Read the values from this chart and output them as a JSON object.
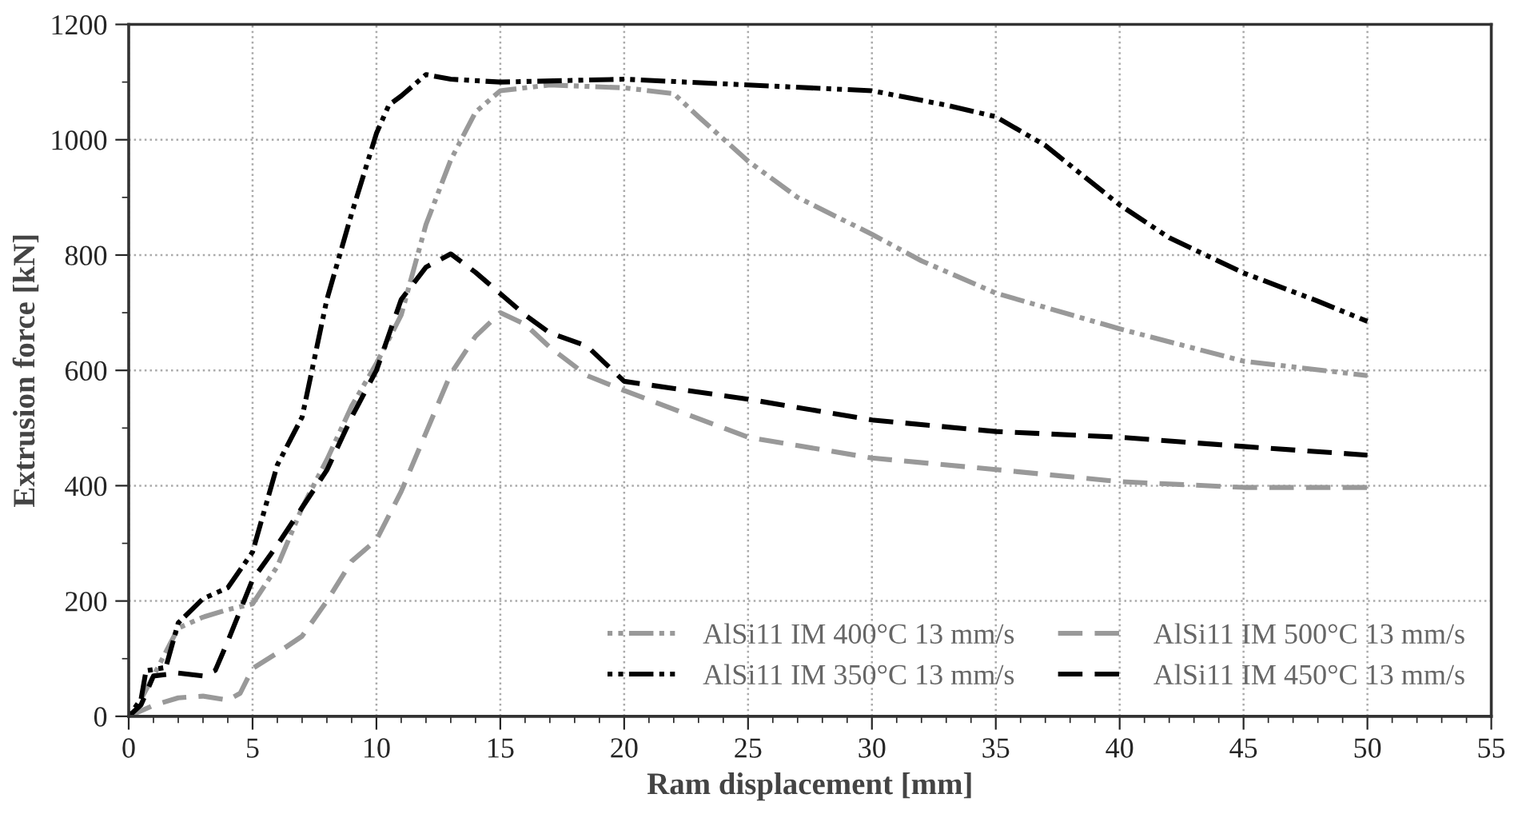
{
  "chart_data": {
    "type": "line",
    "xlabel": "Ram displacement [mm]",
    "ylabel": "Extrusion force [kN]",
    "xlim": [
      0,
      55
    ],
    "xticks": [
      0,
      5,
      10,
      15,
      20,
      25,
      30,
      35,
      40,
      45,
      50,
      55
    ],
    "ylim": [
      0,
      1200
    ],
    "yticks": [
      0,
      200,
      400,
      600,
      800,
      1000,
      1200
    ],
    "grid": true,
    "legend": "bottom right",
    "series": [
      {
        "name": "AlSi11 IM 400°C 13 mm/s",
        "color": "#999999",
        "line_style": "dotted",
        "x": [
          0,
          0.5,
          1,
          2,
          3,
          4,
          5,
          6,
          7,
          8,
          9,
          10,
          11,
          12,
          13,
          14,
          15,
          17,
          20,
          22,
          23,
          25,
          27,
          30,
          32,
          35,
          40,
          45,
          50
        ],
        "values": [
          0,
          30,
          70,
          153,
          172,
          185,
          195,
          260,
          362,
          445,
          538,
          612,
          696,
          853,
          965,
          1048,
          1085,
          1095,
          1090,
          1080,
          1040,
          963,
          900,
          836,
          790,
          734,
          672,
          616,
          591
        ]
      },
      {
        "name": "AlSi11 IM 350°C 13 mm/s",
        "color": "#000000",
        "line_style": "dotted",
        "x": [
          0,
          0.5,
          0.7,
          1.5,
          2,
          3,
          4,
          5,
          6,
          7,
          8,
          9,
          10,
          10.5,
          11,
          12,
          13,
          15,
          20,
          25,
          30,
          33,
          35,
          37,
          40,
          42,
          45,
          48,
          50
        ],
        "values": [
          0,
          30,
          79,
          85,
          162,
          204,
          223,
          285,
          436,
          519,
          723,
          872,
          1011,
          1060,
          1076,
          1113,
          1105,
          1100,
          1105,
          1095,
          1085,
          1060,
          1040,
          990,
          887,
          830,
          769,
          720,
          685
        ]
      },
      {
        "name": "AlSi11 IM 500°C 13 mm/s",
        "color": "#999999",
        "line_style": "dashed",
        "x": [
          0,
          1,
          2,
          3,
          4,
          4.5,
          5,
          6,
          7,
          8,
          9,
          10,
          11,
          12,
          13,
          14,
          15,
          16,
          17,
          18.5,
          20,
          25,
          30,
          35,
          40,
          45,
          50
        ],
        "values": [
          0,
          19,
          32,
          35,
          28,
          40,
          83,
          110,
          139,
          200,
          269,
          306,
          390,
          492,
          594,
          659,
          700,
          680,
          640,
          591,
          565,
          484,
          448,
          428,
          407,
          397,
          397
        ]
      },
      {
        "name": "AlSi11 IM 450°C 13 mm/s",
        "color": "#000000",
        "line_style": "dashed",
        "x": [
          0,
          0.5,
          1,
          2,
          3,
          3.5,
          4,
          5,
          6,
          7,
          8,
          9,
          10,
          11,
          12,
          13,
          14,
          15,
          16,
          17,
          18.5,
          20,
          25,
          30,
          35,
          40,
          45,
          50
        ],
        "values": [
          0,
          20,
          70,
          75,
          70,
          80,
          130,
          237,
          297,
          362,
          427,
          519,
          600,
          723,
          779,
          802,
          770,
          733,
          696,
          665,
          642,
          581,
          550,
          514,
          494,
          484,
          468,
          453
        ]
      }
    ]
  }
}
